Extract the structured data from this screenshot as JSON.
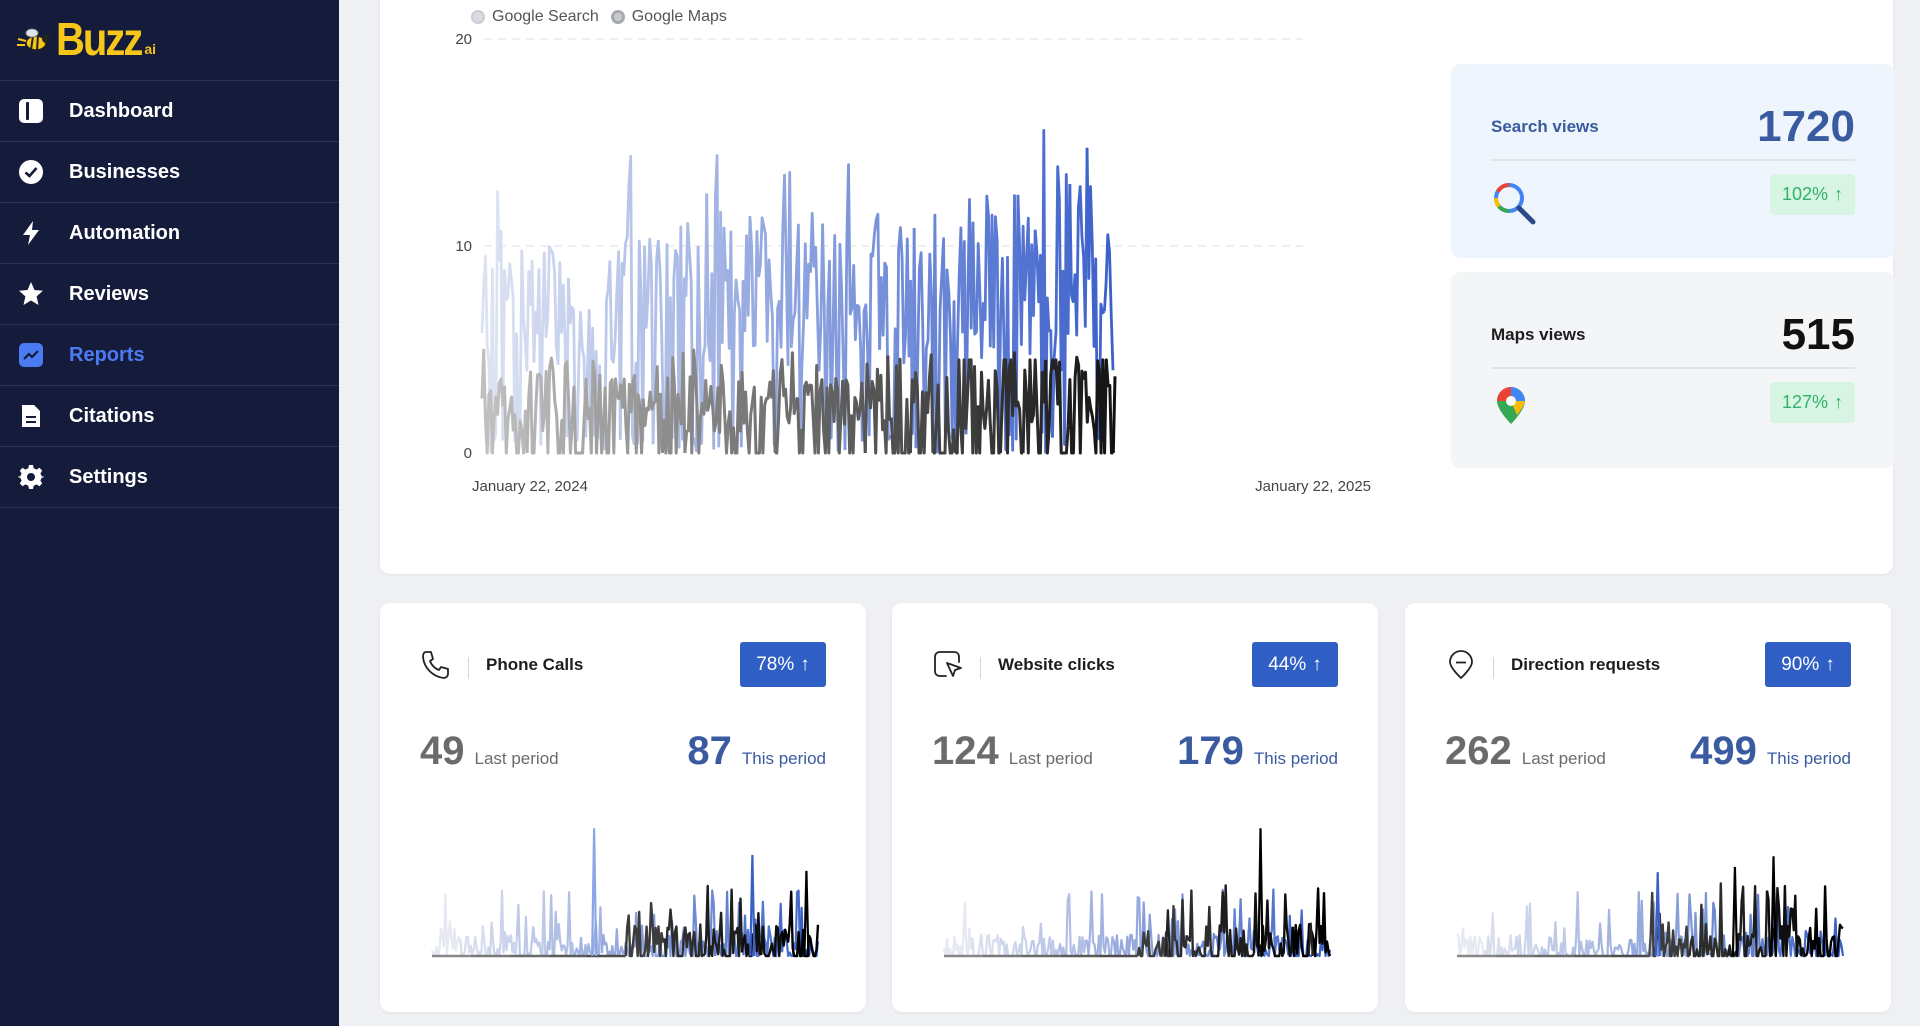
{
  "brand": {
    "name": "Buzz",
    "suffix": "ai"
  },
  "sidebar": {
    "items": [
      {
        "label": "Dashboard",
        "icon": "dashboard-icon",
        "active": false
      },
      {
        "label": "Businesses",
        "icon": "check-badge-icon",
        "active": false
      },
      {
        "label": "Automation",
        "icon": "lightning-icon",
        "active": false
      },
      {
        "label": "Reviews",
        "icon": "star-icon",
        "active": false
      },
      {
        "label": "Reports",
        "icon": "chart-icon",
        "active": true
      },
      {
        "label": "Citations",
        "icon": "document-icon",
        "active": false
      },
      {
        "label": "Settings",
        "icon": "gear-icon",
        "active": false
      }
    ]
  },
  "colors": {
    "accent": "#2f5fc4",
    "sidebar": "#151b3a",
    "active": "#4b7bf2",
    "positive": "#2fb26a"
  },
  "chart_data": {
    "type": "line",
    "legend": [
      {
        "name": "Google Search",
        "placement": "top-left"
      },
      {
        "name": "Google Maps",
        "placement": "top-left"
      }
    ],
    "x_start_label": "January 22, 2024",
    "x_end_label": "January 22, 2025",
    "yticks": [
      "0",
      "10",
      "20"
    ],
    "ylim": [
      0,
      20
    ],
    "grid": true,
    "series": [
      {
        "name": "Google Search",
        "points": 366,
        "peak": 16.2
      },
      {
        "name": "Google Maps",
        "points": 366,
        "peak": 5.0
      }
    ]
  },
  "stats": {
    "search": {
      "label": "Search views",
      "value": "1720",
      "change": "102%",
      "icon": "magnifier-icon"
    },
    "maps": {
      "label": "Maps views",
      "value": "515",
      "change": "127%",
      "icon": "map-pin-icon"
    }
  },
  "cards": [
    {
      "title": "Phone Calls",
      "icon": "phone-icon",
      "badge": "78%",
      "last": "49",
      "last_label": "Last period",
      "this": "87",
      "this_label": "This period"
    },
    {
      "title": "Website clicks",
      "icon": "cursor-click-icon",
      "badge": "44%",
      "last": "124",
      "last_label": "Last period",
      "this": "179",
      "this_label": "This period"
    },
    {
      "title": "Direction requests",
      "icon": "direction-icon",
      "badge": "90%",
      "last": "262",
      "last_label": "Last period",
      "this": "499",
      "this_label": "This period"
    }
  ]
}
